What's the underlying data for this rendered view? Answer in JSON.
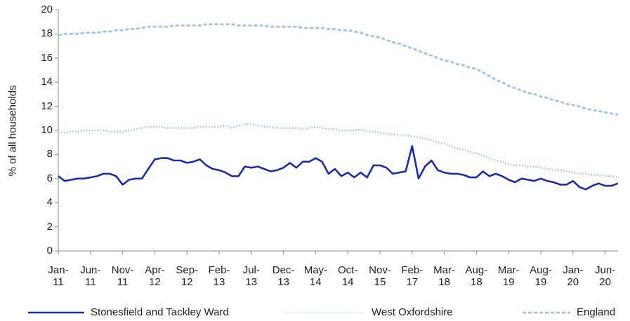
{
  "chart_data": {
    "type": "line",
    "y_label": "% of all households",
    "categories": [
      "Jan-11",
      null,
      null,
      null,
      null,
      "Jun-11",
      null,
      null,
      null,
      null,
      "Nov-11",
      null,
      null,
      null,
      null,
      "Apr-12",
      null,
      null,
      null,
      null,
      "Sep-12",
      null,
      null,
      null,
      null,
      "Feb-13",
      null,
      null,
      null,
      null,
      "Jul-13",
      null,
      null,
      null,
      null,
      "Dec-13",
      null,
      null,
      null,
      null,
      "May-14",
      null,
      null,
      null,
      null,
      "Oct-14",
      null,
      null,
      null,
      null,
      "Nov-15",
      null,
      null,
      null,
      null,
      "Feb-17",
      null,
      null,
      null,
      null,
      "Mar-18",
      null,
      null,
      null,
      null,
      "Aug-18",
      null,
      null,
      null,
      null,
      "Mar-19",
      null,
      null,
      null,
      null,
      "Aug-19",
      null,
      null,
      null,
      null,
      "Jan-20",
      null,
      null,
      null,
      null,
      "Jun-20",
      null,
      null
    ],
    "series": [
      {
        "name": "Stonesfield and Tackley Ward",
        "color": "#1a2fa0",
        "style": "solid",
        "values": [
          6.2,
          5.8,
          5.9,
          6.0,
          6.0,
          6.1,
          6.2,
          6.4,
          6.4,
          6.2,
          5.5,
          5.9,
          6.0,
          6.0,
          6.8,
          7.6,
          7.7,
          7.7,
          7.5,
          7.5,
          7.3,
          7.4,
          7.6,
          7.1,
          6.8,
          6.7,
          6.5,
          6.2,
          6.2,
          7.0,
          6.9,
          7.0,
          6.8,
          6.6,
          6.7,
          6.9,
          7.3,
          6.9,
          7.4,
          7.4,
          7.7,
          7.4,
          6.4,
          6.8,
          6.2,
          6.5,
          6.1,
          6.5,
          6.1,
          7.1,
          7.1,
          6.9,
          6.4,
          6.5,
          6.6,
          8.7,
          6.0,
          7.0,
          7.5,
          6.7,
          6.5,
          6.4,
          6.4,
          6.3,
          6.1,
          6.1,
          6.6,
          6.2,
          6.4,
          6.2,
          5.9,
          5.7,
          6.0,
          5.9,
          5.8,
          6.0,
          5.8,
          5.7,
          5.5,
          5.5,
          5.8,
          5.3,
          5.1,
          5.4,
          5.6,
          5.4,
          5.4,
          5.6
        ]
      },
      {
        "name": "West Oxfordshire",
        "color": "#9cc3ee",
        "style": "dotted",
        "values": [
          9.8,
          9.8,
          9.9,
          9.9,
          10.0,
          10.0,
          10.0,
          10.0,
          9.9,
          9.9,
          9.9,
          10.0,
          10.1,
          10.2,
          10.3,
          10.3,
          10.3,
          10.2,
          10.2,
          10.2,
          10.2,
          10.2,
          10.3,
          10.3,
          10.3,
          10.3,
          10.4,
          10.2,
          10.4,
          10.5,
          10.5,
          10.4,
          10.3,
          10.3,
          10.2,
          10.2,
          10.2,
          10.2,
          10.1,
          10.2,
          10.3,
          10.2,
          10.1,
          10.1,
          10.0,
          10.0,
          10.0,
          10.1,
          9.9,
          9.9,
          9.8,
          9.7,
          9.7,
          9.6,
          9.6,
          9.5,
          9.4,
          9.3,
          9.2,
          9.0,
          8.9,
          8.7,
          8.5,
          8.4,
          8.2,
          8.1,
          7.9,
          7.7,
          7.5,
          7.4,
          7.2,
          7.1,
          7.1,
          7.0,
          7.0,
          6.9,
          6.8,
          6.7,
          6.7,
          6.6,
          6.5,
          6.4,
          6.4,
          6.3,
          6.3,
          6.2,
          6.2,
          6.1
        ]
      },
      {
        "name": "England",
        "color": "#9cc3ee",
        "style": "dashed",
        "values": [
          17.9,
          18.0,
          18.0,
          18.0,
          18.1,
          18.1,
          18.1,
          18.2,
          18.2,
          18.3,
          18.3,
          18.4,
          18.4,
          18.5,
          18.6,
          18.6,
          18.6,
          18.6,
          18.7,
          18.7,
          18.7,
          18.7,
          18.7,
          18.8,
          18.8,
          18.8,
          18.8,
          18.8,
          18.7,
          18.7,
          18.7,
          18.7,
          18.7,
          18.6,
          18.6,
          18.6,
          18.6,
          18.6,
          18.5,
          18.5,
          18.5,
          18.5,
          18.4,
          18.4,
          18.3,
          18.3,
          18.2,
          18.1,
          17.9,
          17.8,
          17.7,
          17.5,
          17.3,
          17.2,
          17.0,
          16.8,
          16.6,
          16.4,
          16.2,
          16.0,
          15.8,
          15.7,
          15.5,
          15.4,
          15.2,
          15.1,
          14.8,
          14.5,
          14.2,
          14.0,
          13.7,
          13.5,
          13.3,
          13.1,
          13.0,
          12.8,
          12.7,
          12.5,
          12.4,
          12.2,
          12.1,
          12.0,
          11.8,
          11.7,
          11.6,
          11.5,
          11.4,
          11.3
        ]
      }
    ],
    "ylim": [
      0,
      20
    ],
    "yticks": [
      0,
      2,
      4,
      6,
      8,
      10,
      12,
      14,
      16,
      18,
      20
    ],
    "legend": "bottom",
    "grid": false
  }
}
